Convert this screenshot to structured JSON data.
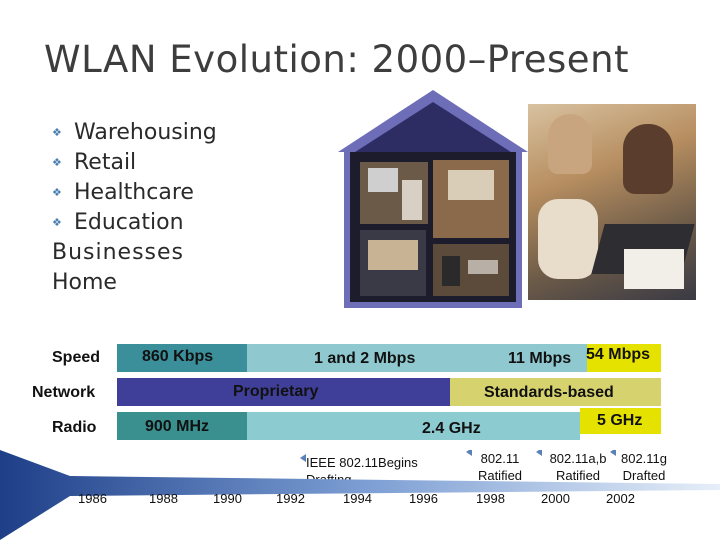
{
  "title": "WLAN Evolution: 2000–Present",
  "bullets": [
    "Warehousing",
    "Retail",
    "Healthcare",
    "Education"
  ],
  "plain_lines": [
    "Businesses",
    "Home"
  ],
  "rows": {
    "speed": {
      "label": "Speed",
      "segments": [
        "860 Kbps",
        "1 and 2 Mbps",
        "11 Mbps",
        "54 Mbps"
      ]
    },
    "network": {
      "label": "Network",
      "segments": [
        "Proprietary",
        "Standards-based"
      ]
    },
    "radio": {
      "label": "Radio",
      "segments": [
        "900 MHz",
        "2.4 GHz",
        "5 GHz"
      ]
    }
  },
  "milestones": {
    "ieee_drafting": "IEEE 802.11Begins Drafting",
    "ratified_80211": "802.11 Ratified",
    "ratified_80211ab": "802.11a,b Ratified",
    "drafted_80211g": "802.11g Drafted"
  },
  "years": [
    "1986",
    "1988",
    "1990",
    "1992",
    "1994",
    "1996",
    "1998",
    "2000",
    "2002"
  ],
  "colors": {
    "speed_dark": "#3b8f9a",
    "speed_light": "#8fc9cf",
    "network_dark": "#3f3f99",
    "network_light": "#d6d36e",
    "radio_dark": "#3a8f8f",
    "radio_light": "#8ccbd0",
    "accent_yellow": "#e6e200",
    "bullet_blue": "#4a7fb0"
  }
}
